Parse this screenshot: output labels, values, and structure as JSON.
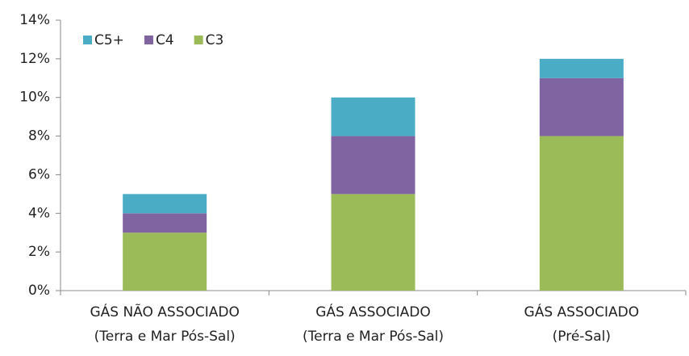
{
  "chart_data": {
    "type": "stacked_bar",
    "categories": [
      [
        "GÁS NÃO ASSOCIADO",
        "(Terra e Mar Pós-Sal)"
      ],
      [
        "GÁS ASSOCIADO",
        "(Terra e Mar Pós-Sal)"
      ],
      [
        "GÁS ASSOCIADO",
        "(Pré-Sal)"
      ]
    ],
    "series": [
      {
        "name": "C3",
        "color": "#9bbb59",
        "values": [
          3,
          5,
          8
        ]
      },
      {
        "name": "C4",
        "color": "#8064a2",
        "values": [
          1,
          3,
          3
        ]
      },
      {
        "name": "C5+",
        "color": "#4bacc6",
        "values": [
          1,
          2,
          1
        ]
      }
    ],
    "ylim": [
      0,
      14
    ],
    "yticks": [
      {
        "value": 0,
        "label": "0%"
      },
      {
        "value": 2,
        "label": "2%"
      },
      {
        "value": 4,
        "label": "4%"
      },
      {
        "value": 6,
        "label": "6%"
      },
      {
        "value": 8,
        "label": "8%"
      },
      {
        "value": 10,
        "label": "10%"
      },
      {
        "value": 12,
        "label": "12%"
      },
      {
        "value": 14,
        "label": "14%"
      }
    ],
    "legend": "top-left",
    "grid": false
  }
}
